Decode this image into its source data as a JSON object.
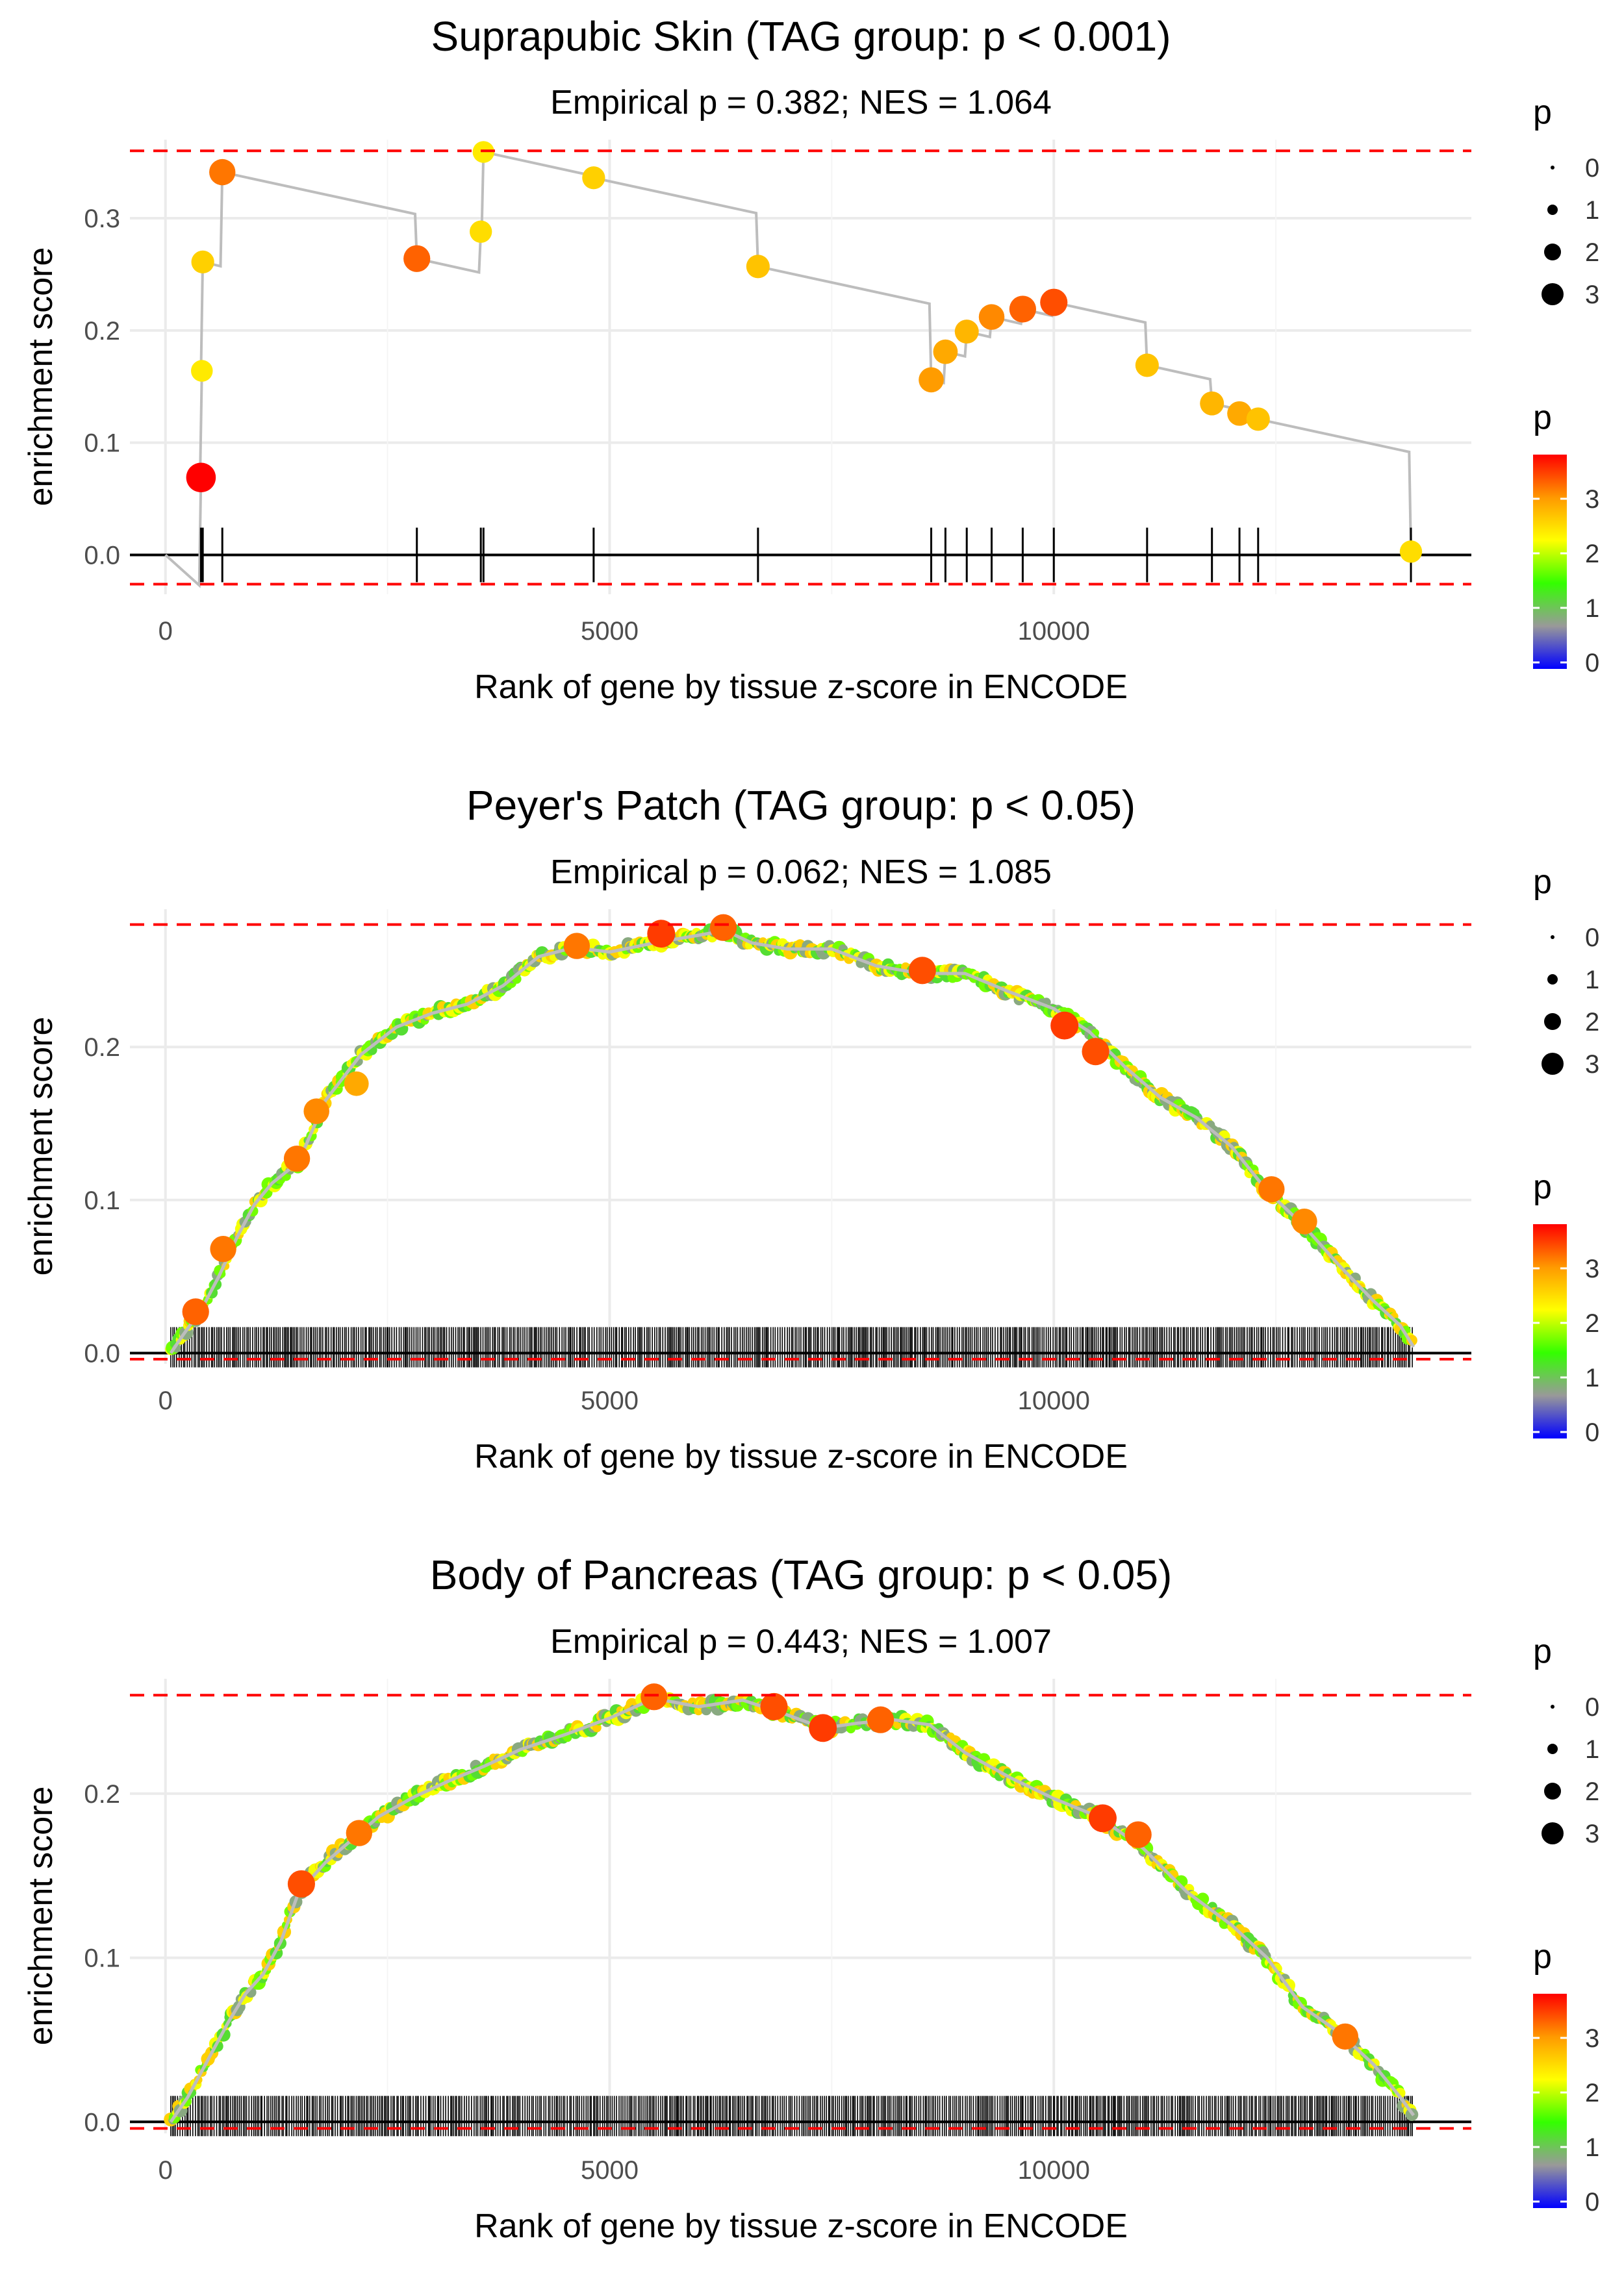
{
  "figure": {
    "colorbar_stops": [
      "#0000ff",
      "#999999",
      "#33ff00",
      "#ffff00",
      "#ff9900",
      "#ff0000"
    ],
    "reference_line_color": "#ff0000",
    "curve_color": "#bdbdbd",
    "p_legend_title": "p"
  },
  "chart_data": [
    {
      "type": "scatter",
      "title": "Suprapubic Skin (TAG group: p < 0.001)",
      "subtitle": "Empirical p = 0.382; NES = 1.064",
      "xlabel": "Rank of gene by tissue z-score in ENCODE",
      "ylabel": "enrichment score",
      "xlim": [
        -400,
        14700
      ],
      "ylim": [
        -0.035,
        0.37
      ],
      "xticks": [
        0,
        5000,
        10000
      ],
      "xtick_labels": [
        "0",
        "5000",
        "10000"
      ],
      "yticks": [
        0.0,
        0.1,
        0.2,
        0.3
      ],
      "ytick_labels": [
        "0.0",
        "0.1",
        "0.2",
        "0.3"
      ],
      "hlines": [
        0.36,
        -0.026
      ],
      "points": [
        {
          "x": 400,
          "y": 0.069,
          "p": 3.9
        },
        {
          "x": 410,
          "y": 0.164,
          "p": 2.5
        },
        {
          "x": 420,
          "y": 0.261,
          "p": 2.7
        },
        {
          "x": 640,
          "y": 0.341,
          "p": 3.3
        },
        {
          "x": 2830,
          "y": 0.264,
          "p": 3.4
        },
        {
          "x": 3550,
          "y": 0.288,
          "p": 2.6
        },
        {
          "x": 3580,
          "y": 0.359,
          "p": 2.5
        },
        {
          "x": 4820,
          "y": 0.336,
          "p": 2.7
        },
        {
          "x": 6670,
          "y": 0.257,
          "p": 2.8
        },
        {
          "x": 8620,
          "y": 0.156,
          "p": 3.1
        },
        {
          "x": 8780,
          "y": 0.181,
          "p": 3.0
        },
        {
          "x": 9020,
          "y": 0.199,
          "p": 2.9
        },
        {
          "x": 9300,
          "y": 0.212,
          "p": 3.2
        },
        {
          "x": 9650,
          "y": 0.219,
          "p": 3.4
        },
        {
          "x": 10000,
          "y": 0.225,
          "p": 3.5
        },
        {
          "x": 11050,
          "y": 0.169,
          "p": 2.8
        },
        {
          "x": 11780,
          "y": 0.135,
          "p": 2.9
        },
        {
          "x": 12090,
          "y": 0.126,
          "p": 3.0
        },
        {
          "x": 12300,
          "y": 0.121,
          "p": 2.8
        },
        {
          "x": 14020,
          "y": 0.003,
          "p": 2.6
        }
      ],
      "legend_title": "p",
      "size_legend": [
        "0",
        "1",
        "2",
        "3"
      ],
      "color_legend": [
        "3",
        "2",
        "1",
        "0"
      ]
    },
    {
      "type": "scatter",
      "title": "Peyer's Patch (TAG group: p < 0.05)",
      "subtitle": "Empirical p = 0.062; NES = 1.085",
      "xlabel": "Rank of gene by tissue z-score in ENCODE",
      "ylabel": "enrichment score",
      "xlim": [
        -400,
        14700
      ],
      "ylim": [
        -0.007,
        0.29
      ],
      "xticks": [
        0,
        5000,
        10000
      ],
      "xtick_labels": [
        "0",
        "5000",
        "10000"
      ],
      "yticks": [
        0.0,
        0.1,
        0.2
      ],
      "ytick_labels": [
        "0.0",
        "0.1",
        "0.2"
      ],
      "hlines": [
        0.28,
        -0.004
      ],
      "curve": [
        [
          60,
          0.0
        ],
        [
          200,
          0.012
        ],
        [
          400,
          0.028
        ],
        [
          600,
          0.05
        ],
        [
          800,
          0.075
        ],
        [
          1000,
          0.097
        ],
        [
          1200,
          0.111
        ],
        [
          1500,
          0.125
        ],
        [
          1800,
          0.165
        ],
        [
          2200,
          0.195
        ],
        [
          2600,
          0.213
        ],
        [
          3000,
          0.222
        ],
        [
          3400,
          0.228
        ],
        [
          3800,
          0.24
        ],
        [
          4200,
          0.259
        ],
        [
          4600,
          0.265
        ],
        [
          5000,
          0.262
        ],
        [
          5500,
          0.268
        ],
        [
          6000,
          0.273
        ],
        [
          6300,
          0.276
        ],
        [
          6600,
          0.268
        ],
        [
          7000,
          0.264
        ],
        [
          7500,
          0.264
        ],
        [
          8000,
          0.253
        ],
        [
          8500,
          0.248
        ],
        [
          9000,
          0.248
        ],
        [
          9500,
          0.236
        ],
        [
          10000,
          0.225
        ],
        [
          10400,
          0.21
        ],
        [
          10800,
          0.187
        ],
        [
          11200,
          0.167
        ],
        [
          11600,
          0.154
        ],
        [
          12000,
          0.135
        ],
        [
          12400,
          0.106
        ],
        [
          12800,
          0.084
        ],
        [
          13200,
          0.058
        ],
        [
          13600,
          0.034
        ],
        [
          13900,
          0.018
        ],
        [
          14050,
          0.004
        ]
      ],
      "highlights": [
        {
          "x": 340,
          "y": 0.027,
          "p": 3.4
        },
        {
          "x": 650,
          "y": 0.068,
          "p": 3.3
        },
        {
          "x": 1480,
          "y": 0.127,
          "p": 3.3
        },
        {
          "x": 1700,
          "y": 0.158,
          "p": 3.2
        },
        {
          "x": 2150,
          "y": 0.176,
          "p": 3.0
        },
        {
          "x": 4630,
          "y": 0.266,
          "p": 3.3
        },
        {
          "x": 5580,
          "y": 0.274,
          "p": 3.6
        },
        {
          "x": 6280,
          "y": 0.278,
          "p": 3.4
        },
        {
          "x": 8520,
          "y": 0.25,
          "p": 3.5
        },
        {
          "x": 10120,
          "y": 0.214,
          "p": 3.6
        },
        {
          "x": 10470,
          "y": 0.197,
          "p": 3.5
        },
        {
          "x": 12450,
          "y": 0.107,
          "p": 3.3
        },
        {
          "x": 12820,
          "y": 0.086,
          "p": 3.2
        }
      ],
      "rug_density": "dense",
      "legend_title": "p",
      "size_legend": [
        "0",
        "1",
        "2",
        "3"
      ],
      "color_legend": [
        "3",
        "2",
        "1",
        "0"
      ]
    },
    {
      "type": "scatter",
      "title": "Body of Pancreas (TAG group: p < 0.05)",
      "subtitle": "Empirical p = 0.443; NES = 1.007",
      "xlabel": "Rank of gene by tissue z-score in ENCODE",
      "ylabel": "enrichment score",
      "xlim": [
        -400,
        14700
      ],
      "ylim": [
        -0.007,
        0.27
      ],
      "xticks": [
        0,
        5000,
        10000
      ],
      "xtick_labels": [
        "0",
        "5000",
        "10000"
      ],
      "yticks": [
        0.0,
        0.1,
        0.2
      ],
      "ytick_labels": [
        "0.0",
        "0.1",
        "0.2"
      ],
      "hlines": [
        0.26,
        -0.004
      ],
      "curve": [
        [
          60,
          0.0
        ],
        [
          250,
          0.015
        ],
        [
          500,
          0.04
        ],
        [
          700,
          0.06
        ],
        [
          900,
          0.078
        ],
        [
          1100,
          0.09
        ],
        [
          1300,
          0.11
        ],
        [
          1500,
          0.14
        ],
        [
          1800,
          0.158
        ],
        [
          2100,
          0.172
        ],
        [
          2400,
          0.186
        ],
        [
          2800,
          0.198
        ],
        [
          3200,
          0.208
        ],
        [
          3600,
          0.217
        ],
        [
          4000,
          0.227
        ],
        [
          4500,
          0.236
        ],
        [
          5000,
          0.246
        ],
        [
          5500,
          0.258
        ],
        [
          6000,
          0.253
        ],
        [
          6500,
          0.257
        ],
        [
          7000,
          0.248
        ],
        [
          7400,
          0.24
        ],
        [
          7800,
          0.243
        ],
        [
          8200,
          0.245
        ],
        [
          8600,
          0.242
        ],
        [
          9000,
          0.225
        ],
        [
          9500,
          0.21
        ],
        [
          10000,
          0.197
        ],
        [
          10500,
          0.186
        ],
        [
          11000,
          0.167
        ],
        [
          11500,
          0.14
        ],
        [
          12000,
          0.12
        ],
        [
          12400,
          0.1
        ],
        [
          12800,
          0.07
        ],
        [
          13200,
          0.055
        ],
        [
          13600,
          0.035
        ],
        [
          13900,
          0.015
        ],
        [
          14050,
          0.004
        ]
      ],
      "highlights": [
        {
          "x": 1530,
          "y": 0.145,
          "p": 3.5
        },
        {
          "x": 2180,
          "y": 0.176,
          "p": 3.3
        },
        {
          "x": 5500,
          "y": 0.259,
          "p": 3.4
        },
        {
          "x": 6850,
          "y": 0.253,
          "p": 3.5
        },
        {
          "x": 7400,
          "y": 0.24,
          "p": 3.6
        },
        {
          "x": 8050,
          "y": 0.245,
          "p": 3.4
        },
        {
          "x": 10550,
          "y": 0.185,
          "p": 3.6
        },
        {
          "x": 10950,
          "y": 0.175,
          "p": 3.4
        },
        {
          "x": 13280,
          "y": 0.052,
          "p": 3.3
        }
      ],
      "rug_density": "dense",
      "legend_title": "p",
      "size_legend": [
        "0",
        "1",
        "2",
        "3"
      ],
      "color_legend": [
        "3",
        "2",
        "1",
        "0"
      ]
    }
  ]
}
